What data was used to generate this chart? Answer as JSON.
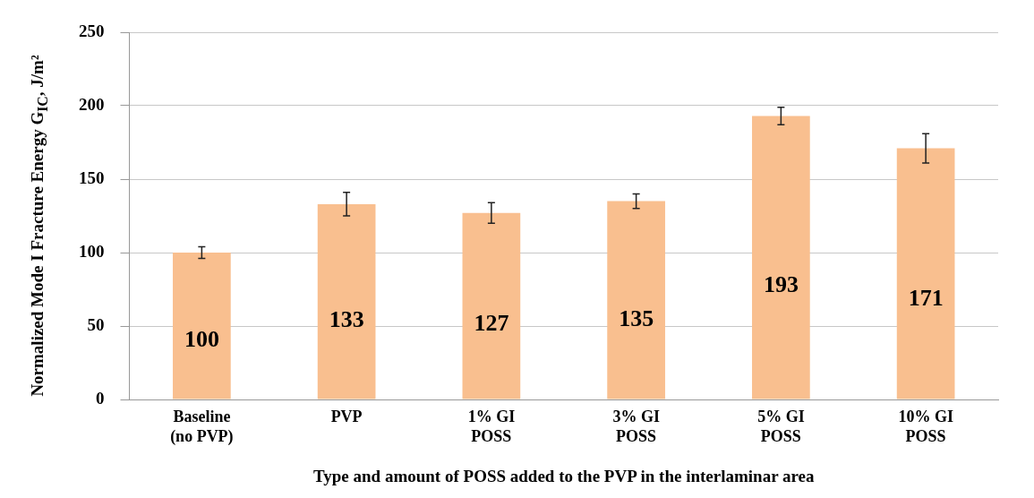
{
  "chart_data": {
    "type": "bar",
    "xlabel": "Type and amount of POSS added to the PVP in the interlaminar area",
    "ylabel": "Normalized Mode I Fracture Energy G$_{IC}$, J/m²",
    "categories": [
      "Baseline\n(no PVP)",
      "PVP",
      "1% GI\nPOSS",
      "3% GI\nPOSS",
      "5% GI\nPOSS",
      "10% GI\nPOSS"
    ],
    "values": [
      100,
      133,
      127,
      135,
      193,
      171
    ],
    "errors": [
      4,
      8,
      7,
      5,
      6,
      10
    ],
    "color": "#f9bf8f",
    "ylim": [
      0,
      250
    ],
    "yticks": [
      0,
      50,
      100,
      150,
      200,
      250
    ],
    "grid": "y",
    "data_labels": true
  }
}
